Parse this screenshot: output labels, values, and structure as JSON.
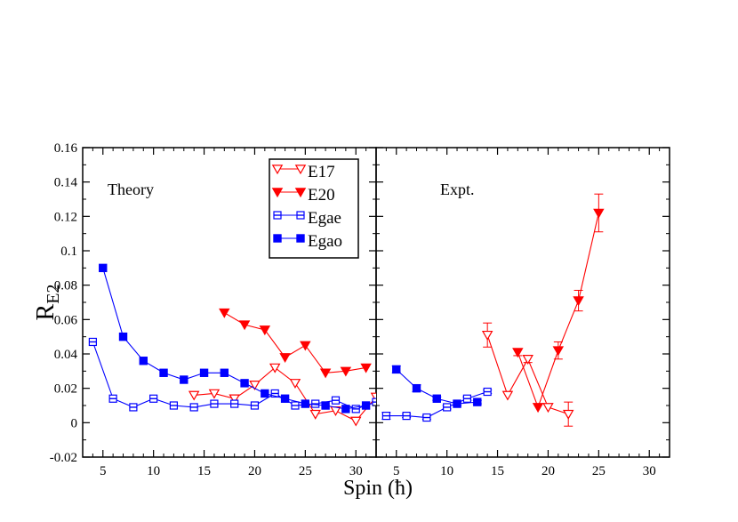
{
  "chart_data": {
    "type": "line",
    "ylabel_main": "R",
    "ylabel_sub": "E2",
    "xlabel": "Spin (ħ)",
    "ylim": [
      -0.02,
      0.16
    ],
    "yticks": [
      -0.02,
      0,
      0.02,
      0.04,
      0.06,
      0.08,
      0.1,
      0.12,
      0.14,
      0.16
    ],
    "ytick_labels": [
      "-0.02",
      "0",
      "0.02",
      "0.04",
      "0.06",
      "0.08",
      "0.1",
      "0.12",
      "0.14",
      "0.16"
    ],
    "colors": {
      "E17": "#ff0000",
      "E20": "#ff0000",
      "Egae": "#0000ff",
      "Egao": "#0000ff"
    },
    "panels": [
      {
        "title": "Theory",
        "xlim": [
          3,
          32
        ],
        "xticks": [
          5,
          10,
          15,
          20,
          25,
          30
        ],
        "xtick_labels": [
          "5",
          "10",
          "15",
          "20",
          "25",
          "30"
        ],
        "series": [
          {
            "name": "E17",
            "marker": "triangle-down-open",
            "x": [
              14,
              16,
              18,
              20,
              22,
              24,
              26,
              28,
              30,
              32
            ],
            "y": [
              0.016,
              0.017,
              0.014,
              0.022,
              0.032,
              0.023,
              0.005,
              0.007,
              0.001,
              0.015
            ]
          },
          {
            "name": "E20",
            "marker": "triangle-down-filled",
            "x": [
              17,
              19,
              21,
              23,
              25,
              27,
              29,
              31
            ],
            "y": [
              0.064,
              0.057,
              0.054,
              0.038,
              0.045,
              0.029,
              0.03,
              0.032
            ]
          },
          {
            "name": "Egae",
            "marker": "square-half",
            "x": [
              4,
              6,
              8,
              10,
              12,
              14,
              16,
              18,
              20,
              22,
              24,
              26,
              28,
              30,
              32
            ],
            "y": [
              0.047,
              0.014,
              0.009,
              0.014,
              0.01,
              0.009,
              0.011,
              0.011,
              0.01,
              0.017,
              0.01,
              0.011,
              0.013,
              0.008,
              0.012
            ]
          },
          {
            "name": "Egao",
            "marker": "square-filled",
            "x": [
              5,
              7,
              9,
              11,
              13,
              15,
              17,
              19,
              21,
              23,
              25,
              27,
              29,
              31
            ],
            "y": [
              0.09,
              0.05,
              0.036,
              0.029,
              0.025,
              0.029,
              0.029,
              0.023,
              0.017,
              0.014,
              0.011,
              0.01,
              0.008,
              0.01
            ]
          }
        ]
      },
      {
        "title": "Expt.",
        "xlim": [
          3,
          32
        ],
        "xticks": [
          5,
          10,
          15,
          20,
          25,
          30
        ],
        "xtick_labels": [
          "5",
          "10",
          "15",
          "20",
          "25",
          "30"
        ],
        "series": [
          {
            "name": "E17",
            "marker": "triangle-down-open",
            "x": [
              14,
              16,
              18,
              20,
              22
            ],
            "y": [
              0.051,
              0.016,
              0.037,
              0.009,
              0.005
            ],
            "err": [
              0.007,
              0,
              0.002,
              0,
              0.007
            ]
          },
          {
            "name": "E20",
            "marker": "triangle-down-filled",
            "x": [
              17,
              19,
              21,
              23,
              25
            ],
            "y": [
              0.041,
              0.009,
              0.042,
              0.071,
              0.122
            ],
            "err": [
              0.002,
              0,
              0.005,
              0.006,
              0.011
            ]
          },
          {
            "name": "Egae",
            "marker": "square-half",
            "x": [
              4,
              6,
              8,
              10,
              12,
              14
            ],
            "y": [
              0.004,
              0.004,
              0.003,
              0.009,
              0.014,
              0.018
            ],
            "err": [
              0.002,
              0.001,
              0.001,
              0.001,
              0.001,
              0.001
            ]
          },
          {
            "name": "Egao",
            "marker": "square-filled",
            "x": [
              5,
              7,
              9,
              11,
              13
            ],
            "y": [
              0.031,
              0.02,
              0.014,
              0.011,
              0.012
            ],
            "err": [
              0.002,
              0.002,
              0.001,
              0.001,
              0.001
            ]
          }
        ]
      }
    ],
    "legend": {
      "placement": "top-center of left panel",
      "entries": [
        "E17",
        "E20",
        "Egae",
        "Egao"
      ]
    }
  }
}
